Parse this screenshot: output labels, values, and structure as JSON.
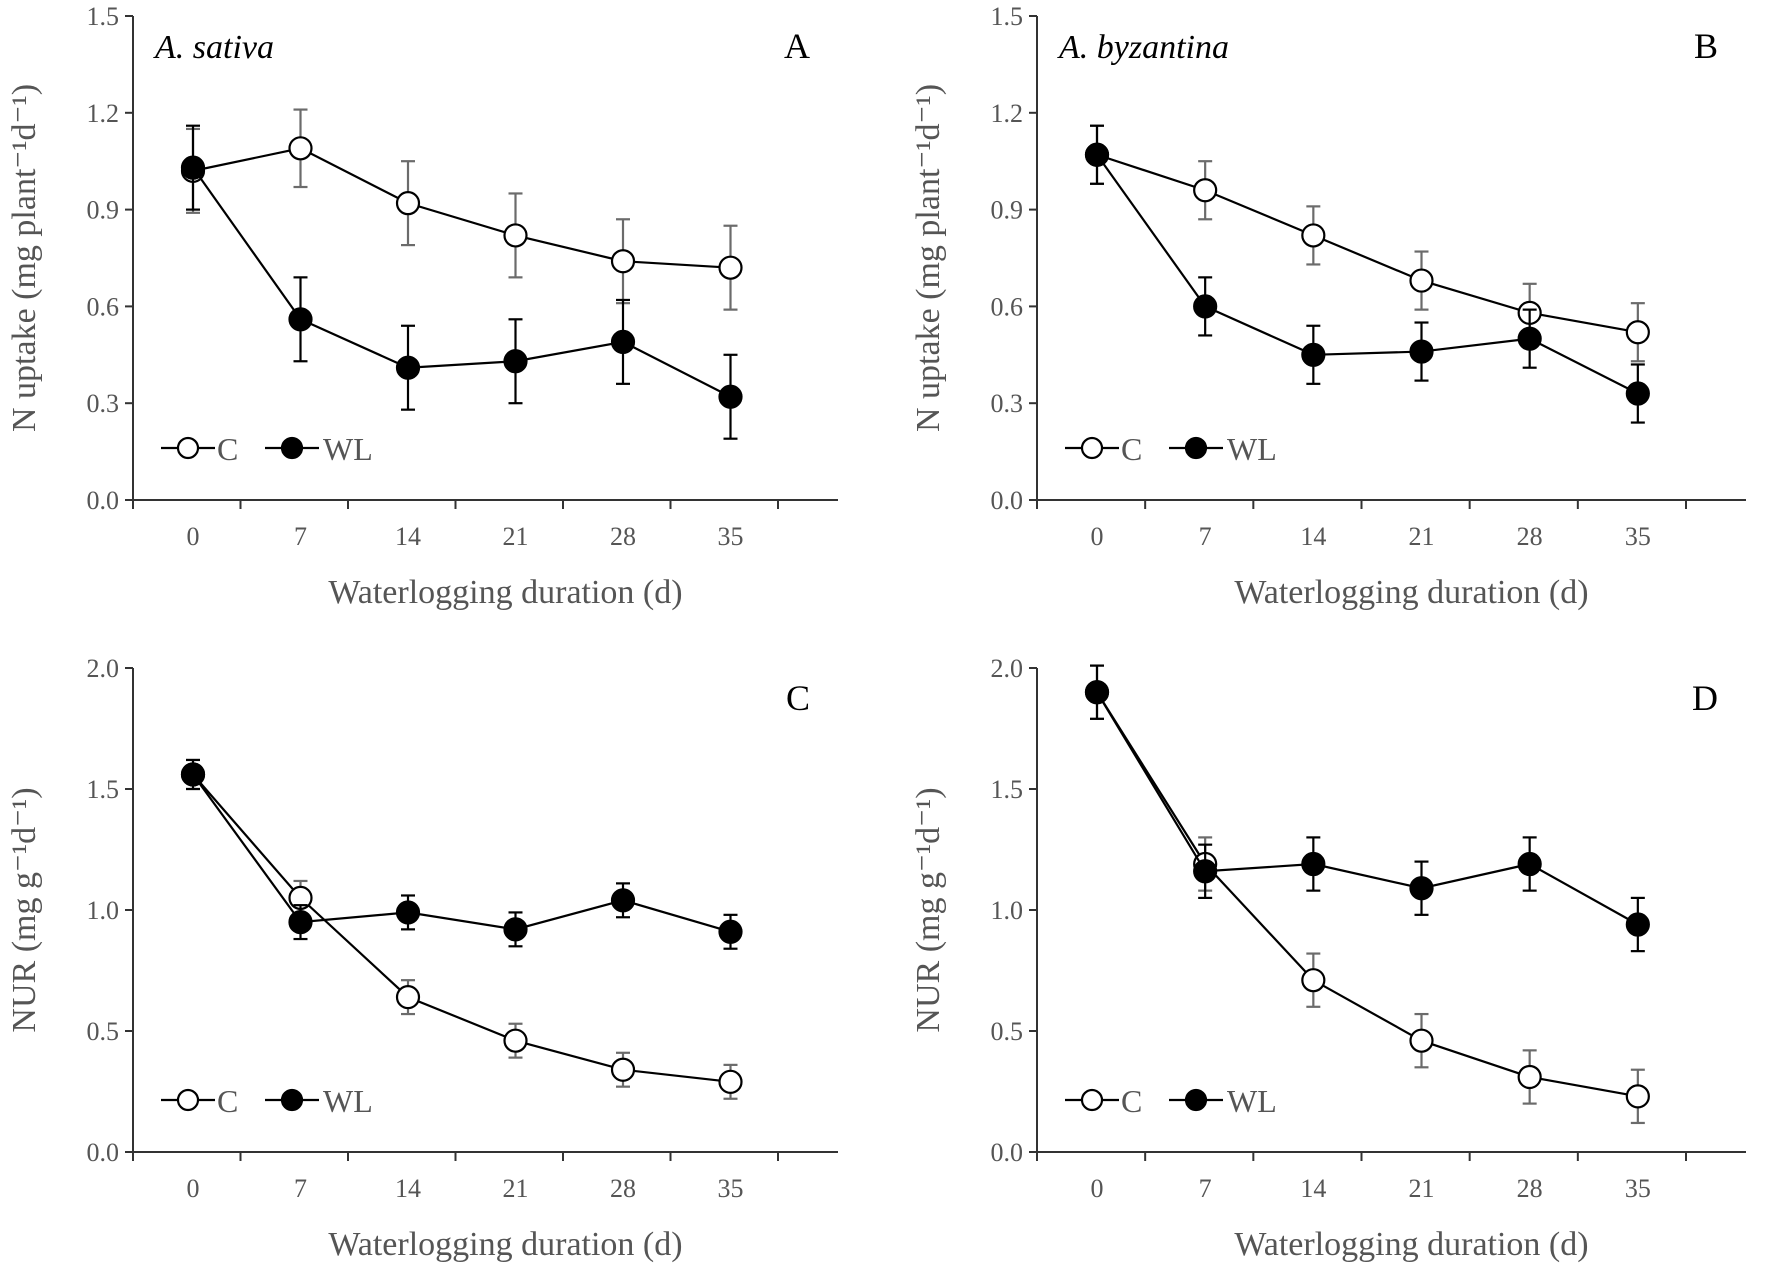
{
  "figure": {
    "x_axis_title": "Waterlogging duration (d)"
  },
  "chart_data": [
    {
      "type": "line",
      "panel": "A",
      "species": "A. sativa",
      "ylabel": "N uptake (mg plant⁻¹d⁻¹)",
      "xlabel": "Waterlogging duration (d)",
      "ylim": [
        0,
        1.5
      ],
      "yticks": [
        "0.0",
        "0.3",
        "0.6",
        "0.9",
        "1.2",
        "1.5"
      ],
      "x": [
        0,
        7,
        14,
        21,
        28,
        35
      ],
      "series": [
        {
          "name": "C",
          "values": [
            1.02,
            1.09,
            0.92,
            0.82,
            0.74,
            0.72
          ],
          "errors": [
            0.13,
            0.12,
            0.13,
            0.13,
            0.13,
            0.13
          ]
        },
        {
          "name": "WL",
          "values": [
            1.03,
            0.56,
            0.41,
            0.43,
            0.49,
            0.32
          ],
          "errors": [
            0.13,
            0.13,
            0.13,
            0.13,
            0.13,
            0.13
          ]
        }
      ],
      "legend": [
        "C",
        "WL"
      ]
    },
    {
      "type": "line",
      "panel": "B",
      "species": "A. byzantina",
      "ylabel": "N uptake (mg plant⁻¹d⁻¹)",
      "xlabel": "Waterlogging duration (d)",
      "ylim": [
        0,
        1.5
      ],
      "yticks": [
        "0.0",
        "0.3",
        "0.6",
        "0.9",
        "1.2",
        "1.5"
      ],
      "x": [
        0,
        7,
        14,
        21,
        28,
        35
      ],
      "series": [
        {
          "name": "C",
          "values": [
            1.07,
            0.96,
            0.82,
            0.68,
            0.58,
            0.52
          ],
          "errors": [
            0.09,
            0.09,
            0.09,
            0.09,
            0.09,
            0.09
          ]
        },
        {
          "name": "WL",
          "values": [
            1.07,
            0.6,
            0.45,
            0.46,
            0.5,
            0.33
          ],
          "errors": [
            0.09,
            0.09,
            0.09,
            0.09,
            0.09,
            0.09
          ]
        }
      ],
      "legend": [
        "C",
        "WL"
      ]
    },
    {
      "type": "line",
      "panel": "C",
      "species": "",
      "ylabel": "NUR (mg g⁻¹d⁻¹)",
      "xlabel": "Waterlogging duration (d)",
      "ylim": [
        0,
        2.0
      ],
      "yticks": [
        "0.0",
        "0.5",
        "1.0",
        "1.5",
        "2.0"
      ],
      "x": [
        0,
        7,
        14,
        21,
        28,
        35
      ],
      "series": [
        {
          "name": "C",
          "values": [
            1.56,
            1.05,
            0.64,
            0.46,
            0.34,
            0.29
          ],
          "errors": [
            0.06,
            0.07,
            0.07,
            0.07,
            0.07,
            0.07
          ]
        },
        {
          "name": "WL",
          "values": [
            1.56,
            0.95,
            0.99,
            0.92,
            1.04,
            0.91
          ],
          "errors": [
            0.06,
            0.07,
            0.07,
            0.07,
            0.07,
            0.07
          ]
        }
      ],
      "legend": [
        "C",
        "WL"
      ]
    },
    {
      "type": "line",
      "panel": "D",
      "species": "",
      "ylabel": "NUR (mg g⁻¹d⁻¹)",
      "xlabel": "Waterlogging duration (d)",
      "ylim": [
        0,
        2.0
      ],
      "yticks": [
        "0.0",
        "0.5",
        "1.0",
        "1.5",
        "2.0"
      ],
      "x": [
        0,
        7,
        14,
        21,
        28,
        35
      ],
      "series": [
        {
          "name": "C",
          "values": [
            1.9,
            1.19,
            0.71,
            0.46,
            0.31,
            0.23
          ],
          "errors": [
            0.11,
            0.11,
            0.11,
            0.11,
            0.11,
            0.11
          ]
        },
        {
          "name": "WL",
          "values": [
            1.9,
            1.16,
            1.19,
            1.09,
            1.19,
            0.94
          ],
          "errors": [
            0.11,
            0.11,
            0.11,
            0.11,
            0.11,
            0.11
          ]
        }
      ],
      "legend": [
        "C",
        "WL"
      ]
    }
  ]
}
